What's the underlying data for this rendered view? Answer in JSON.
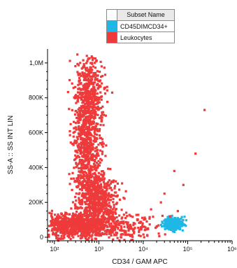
{
  "legend": {
    "header": "Subset Name",
    "items": [
      {
        "label": "CD45DIMCD34+",
        "color": "#1fb8e6"
      },
      {
        "label": "Leukocytes",
        "color": "#ee3a3a"
      }
    ]
  },
  "chart_data": {
    "type": "scatter",
    "xlabel": "CD34 / GAM APC",
    "ylabel": "SS-A :: SS INT LIN",
    "x_scale": "log",
    "xlim": [
      70,
      1000000
    ],
    "ylim": [
      -20000,
      1080000
    ],
    "x_ticks": [
      {
        "value": 100,
        "label": "10²"
      },
      {
        "value": 1000,
        "label": "10³"
      },
      {
        "value": 10000,
        "label": "10⁴"
      },
      {
        "value": 100000,
        "label": "10⁵"
      },
      {
        "value": 1000000,
        "label": "10⁶"
      }
    ],
    "y_ticks": [
      {
        "value": 0,
        "label": "0"
      },
      {
        "value": 200000,
        "label": "200K"
      },
      {
        "value": 400000,
        "label": "400K"
      },
      {
        "value": 600000,
        "label": "600K"
      },
      {
        "value": 800000,
        "label": "800K"
      },
      {
        "value": 1000000,
        "label": "1,0M"
      }
    ],
    "grid": false,
    "legend_position": "top-center",
    "series": [
      {
        "name": "Leukocytes",
        "color": "#ee3a3a",
        "points": [
          [
            500,
            200000
          ],
          [
            600,
            350000
          ],
          [
            550,
            500000
          ],
          [
            650,
            650000
          ],
          [
            700,
            800000
          ],
          [
            450,
            550000
          ],
          [
            580,
            420000
          ],
          [
            800,
            600000
          ],
          [
            400,
            700000
          ],
          [
            620,
            900000
          ],
          [
            520,
            300000
          ],
          [
            680,
            450000
          ],
          [
            750,
            250000
          ],
          [
            900,
            200000
          ],
          [
            1000,
            150000
          ],
          [
            1200,
            250000
          ],
          [
            1400,
            180000
          ],
          [
            800,
            120000
          ],
          [
            1100,
            100000
          ],
          [
            600,
            80000
          ],
          [
            300,
            60000
          ],
          [
            200,
            50000
          ],
          [
            150,
            40000
          ],
          [
            120,
            70000
          ],
          [
            250,
            100000
          ],
          [
            350,
            90000
          ],
          [
            180,
            30000
          ],
          [
            100,
            55000
          ],
          [
            90,
            80000
          ],
          [
            110,
            20000
          ],
          [
            2000,
            60000
          ],
          [
            3000,
            40000
          ],
          [
            5000,
            50000
          ],
          [
            8000,
            30000
          ],
          [
            1500,
            40000
          ],
          [
            450,
            980000
          ],
          [
            700,
            960000
          ],
          [
            380,
            850000
          ],
          [
            500,
            920000
          ],
          [
            850,
            720000
          ],
          [
            300,
            630000
          ],
          [
            950,
            480000
          ],
          [
            420,
            380000
          ],
          [
            1300,
            330000
          ],
          [
            1600,
            140000
          ],
          [
            2500,
            90000
          ],
          [
            4000,
            110000
          ],
          [
            6000,
            70000
          ],
          [
            12000,
            45000
          ],
          [
            20000,
            60000
          ],
          [
            30000,
            250000
          ],
          [
            50000,
            380000
          ],
          [
            80000,
            300000
          ],
          [
            150000,
            480000
          ],
          [
            240000,
            730000
          ],
          [
            60000,
            150000
          ],
          [
            25000,
            200000
          ],
          [
            15000,
            160000
          ],
          [
            12000,
            90000
          ],
          [
            40000,
            120000
          ],
          [
            700,
            1000000
          ],
          [
            550,
            1010000
          ],
          [
            380,
            1000000
          ],
          [
            600,
            940000
          ]
        ]
      },
      {
        "name": "CD45DIMCD34+",
        "color": "#1fb8e6",
        "points": [
          [
            30000,
            70000
          ],
          [
            40000,
            80000
          ],
          [
            50000,
            60000
          ],
          [
            60000,
            90000
          ],
          [
            45000,
            55000
          ],
          [
            55000,
            100000
          ],
          [
            35000,
            65000
          ],
          [
            70000,
            75000
          ],
          [
            65000,
            50000
          ],
          [
            42000,
            95000
          ],
          [
            52000,
            110000
          ],
          [
            38000,
            45000
          ],
          [
            75000,
            85000
          ],
          [
            48000,
            70000
          ],
          [
            58000,
            62000
          ]
        ]
      }
    ]
  }
}
